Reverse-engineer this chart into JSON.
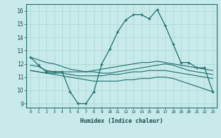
{
  "xlabel": "Humidex (Indice chaleur)",
  "bg_color": "#c8eaea",
  "grid_color": "#b0d8d8",
  "line_color": "#1a6b6b",
  "xlim": [
    -0.5,
    23.5
  ],
  "ylim": [
    8.7,
    16.5
  ],
  "yticks": [
    9,
    10,
    11,
    12,
    13,
    14,
    15,
    16
  ],
  "xticks": [
    0,
    1,
    2,
    3,
    4,
    5,
    6,
    7,
    8,
    9,
    10,
    11,
    12,
    13,
    14,
    15,
    16,
    17,
    18,
    19,
    20,
    21,
    22,
    23
  ],
  "lines": [
    {
      "x": [
        0,
        1,
        2,
        3,
        4,
        5,
        6,
        7,
        8,
        9,
        10,
        11,
        12,
        13,
        14,
        15,
        16,
        17,
        18,
        19,
        20,
        21,
        22,
        23
      ],
      "y": [
        12.5,
        11.9,
        11.4,
        11.4,
        11.4,
        9.9,
        9.0,
        9.0,
        9.9,
        12.0,
        13.1,
        14.4,
        15.3,
        15.7,
        15.7,
        15.4,
        16.1,
        14.9,
        13.5,
        12.1,
        12.1,
        11.7,
        11.7,
        9.9
      ],
      "marker": true
    },
    {
      "x": [
        0,
        1,
        2,
        3,
        4,
        5,
        6,
        7,
        8,
        9,
        10,
        11,
        12,
        13,
        14,
        15,
        16,
        17,
        18,
        19,
        20,
        21,
        22,
        23
      ],
      "y": [
        11.9,
        11.8,
        11.5,
        11.4,
        11.4,
        11.4,
        11.4,
        11.4,
        11.5,
        11.6,
        11.7,
        11.8,
        11.9,
        12.0,
        12.1,
        12.1,
        12.2,
        12.1,
        12.0,
        11.9,
        11.8,
        11.7,
        11.6,
        11.5
      ],
      "marker": false
    },
    {
      "x": [
        0,
        1,
        2,
        3,
        4,
        5,
        6,
        7,
        8,
        9,
        10,
        11,
        12,
        13,
        14,
        15,
        16,
        17,
        18,
        19,
        20,
        21,
        22,
        23
      ],
      "y": [
        11.5,
        11.4,
        11.3,
        11.3,
        11.3,
        11.2,
        11.1,
        11.1,
        11.1,
        11.1,
        11.2,
        11.2,
        11.3,
        11.4,
        11.4,
        11.5,
        11.5,
        11.5,
        11.4,
        11.3,
        11.2,
        11.1,
        11.0,
        10.9
      ],
      "marker": false
    },
    {
      "x": [
        0,
        1,
        2,
        3,
        4,
        5,
        6,
        7,
        8,
        9,
        10,
        11,
        12,
        13,
        14,
        15,
        16,
        17,
        18,
        19,
        20,
        21,
        22,
        23
      ],
      "y": [
        12.5,
        12.3,
        12.1,
        12.0,
        11.8,
        11.6,
        11.5,
        11.4,
        11.4,
        11.3,
        11.3,
        11.4,
        11.5,
        11.6,
        11.7,
        11.8,
        11.9,
        12.0,
        11.9,
        11.7,
        11.5,
        11.4,
        11.3,
        11.2
      ],
      "marker": false
    },
    {
      "x": [
        0,
        1,
        2,
        3,
        4,
        5,
        6,
        7,
        8,
        9,
        10,
        11,
        12,
        13,
        14,
        15,
        16,
        17,
        18,
        19,
        20,
        21,
        22,
        23
      ],
      "y": [
        11.5,
        11.4,
        11.3,
        11.2,
        11.1,
        11.0,
        10.9,
        10.8,
        10.7,
        10.7,
        10.7,
        10.7,
        10.8,
        10.8,
        10.9,
        10.9,
        11.0,
        11.0,
        10.9,
        10.7,
        10.5,
        10.3,
        10.1,
        9.9
      ],
      "marker": false
    }
  ]
}
